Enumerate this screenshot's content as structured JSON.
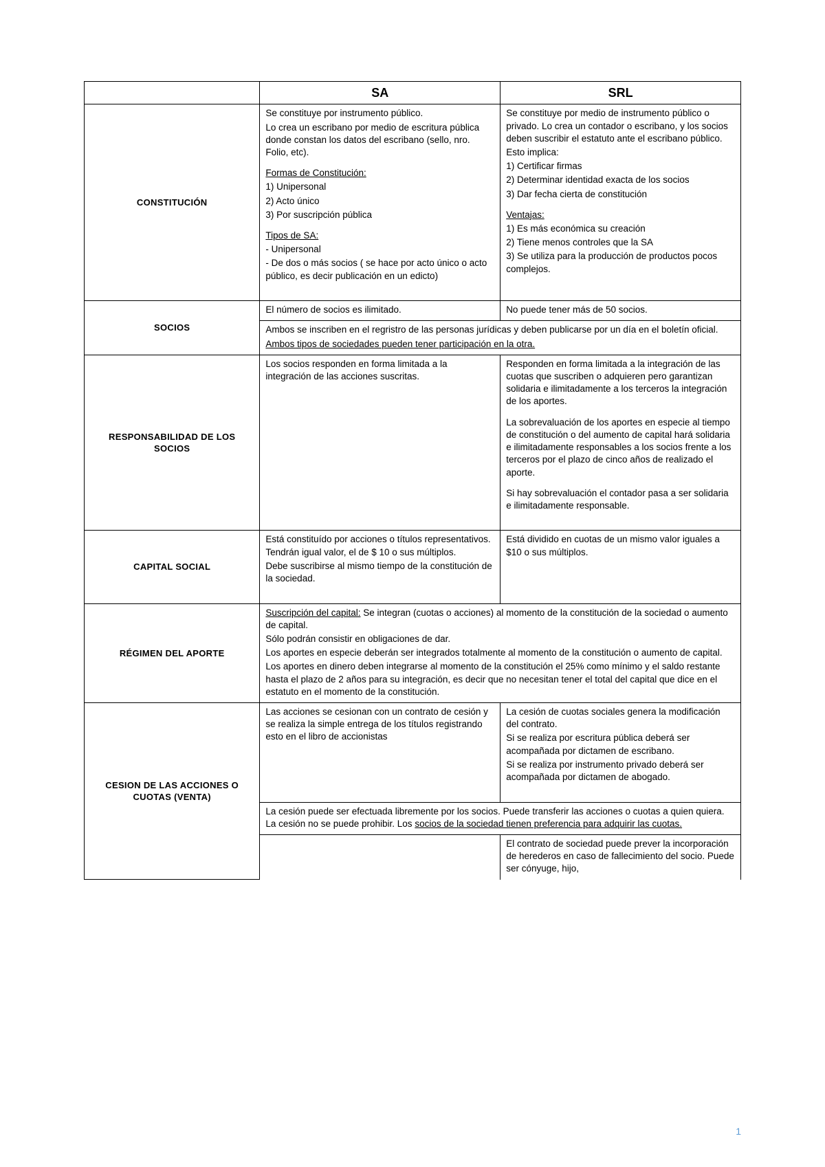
{
  "headers": {
    "blank": "",
    "sa": "SA",
    "srl": "SRL"
  },
  "rows": {
    "constitucion": {
      "label": "CONSTITUCIÓN",
      "sa": {
        "p1": "Se constituye por instrumento público.",
        "p2": "Lo crea un escribano por medio de escritura pública donde constan los datos del escribano (sello, nro. Folio, etc).",
        "h1": "Formas de Constitución:",
        "l1": "1) Unipersonal",
        "l2": "2) Acto único",
        "l3": "3) Por suscripción pública",
        "h2": "Tipos de SA:",
        "t1": "- Unipersonal",
        "t2": "- De dos o más socios ( se hace por acto único o acto público, es decir publicación en un edicto)"
      },
      "srl": {
        "p1": "Se constituye por medio de instrumento público o privado. Lo crea un contador o escribano, y los socios deben suscribir el estatuto ante el escribano público.",
        "p2": "Esto implica:",
        "l1": "1) Certificar firmas",
        "l2": "2) Determinar identidad exacta de los socios",
        "l3": "3) Dar fecha cierta de constitución",
        "h1": "Ventajas:",
        "v1": "1) Es más económica su creación",
        "v2": "2) Tiene menos controles que la SA",
        "v3": "3) Se utiliza para la producción de productos pocos complejos."
      }
    },
    "socios": {
      "label": "SOCIOS",
      "sa": "El número de socios es ilimitado.",
      "srl": "No puede tener más de 50 socios.",
      "shared1": "Ambos se inscriben en el regristro de las personas jurídicas y deben publicarse por un día en el boletín oficial.",
      "shared2": "Ambos tipos de sociedades pueden tener participación en la otra."
    },
    "responsabilidad": {
      "label": "RESPONSABILIDAD DE LOS SOCIOS",
      "sa": "Los socios responden en forma limitada a la integración de las acciones suscritas.",
      "srl": {
        "p1": "Responden en forma limitada a la integración de las cuotas que suscriben o adquieren pero garantizan solidaria e ilimitadamente a los terceros la integración de los aportes.",
        "p2": "La sobrevaluación de los aportes en especie al tiempo de constitución o del aumento de capital hará solidaria e ilimitadamente responsables a los socios frente a los terceros por el plazo de cinco años de realizado el aporte.",
        "p3": "Si hay sobrevaluación el contador pasa a ser solidaria e ilimitadamente responsable."
      }
    },
    "capital": {
      "label": "CAPITAL SOCIAL",
      "sa": {
        "p1": "Está constituído por acciones o títulos representativos. Tendrán igual valor, el de $ 10 o sus múltiplos.",
        "p2": "Debe suscribirse al mismo tiempo de la constitución de la sociedad."
      },
      "srl": "Está dividido en cuotas de un mismo valor iguales a $10 o sus múltiplos."
    },
    "regimen": {
      "label": "RÉGIMEN DEL APORTE",
      "shared": {
        "u1": "Suscripción del capital:",
        "p1": " Se integran (cuotas o acciones) al momento de la constitución de la sociedad o aumento de capital.",
        "p2": "Sólo podrán consistir en obligaciones de dar.",
        "p3": "Los aportes en especie deberán ser integrados totalmente al momento de la constitución o aumento de capital.",
        "p4": "Los aportes en dinero deben integrarse al momento de la constitución el 25% como mínimo y el saldo restante hasta el plazo de 2 años para su integración, es decir que no necesitan tener el total del capital que dice en el estatuto en el momento de la constitución."
      }
    },
    "cesion": {
      "label": "CESION DE LAS ACCIONES O CUOTAS (VENTA)",
      "sa": "Las acciones se cesionan con un contrato de cesión y se realiza la simple entrega de los títulos registrando esto en el libro de accionistas",
      "srl": {
        "p1": "La cesión de cuotas sociales genera la modificación del contrato.",
        "p2": "Si se realiza por escritura pública deberá ser acompañada por dictamen de escribano.",
        "p3": "Si se realiza por instrumento privado deberá ser acompañada por dictamen de abogado."
      },
      "shared": "La cesión puede ser efectuada libremente por los socios. Puede transferir las acciones o cuotas a quien quiera. La cesión no se puede prohibir. Los ",
      "sharedU": "socios de la sociedad tienen preferencia para adquirir las cuotas.",
      "last": {
        "sa": "",
        "srl": "El contrato de sociedad puede prever la incorporación de herederos en caso de fallecimiento del socio. Puede ser cónyuge, hijo,"
      }
    }
  },
  "pageNumber": "1"
}
